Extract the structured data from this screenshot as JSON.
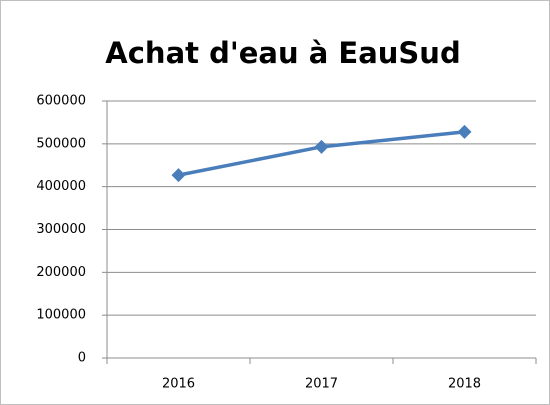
{
  "chart_data": {
    "type": "line",
    "title": "Achat d'eau à EauSud",
    "categories": [
      "2016",
      "2017",
      "2018"
    ],
    "values": [
      427000,
      493000,
      528000
    ],
    "color": "#4a7ebb",
    "ylim": [
      0,
      600000
    ],
    "yticks": [
      0,
      100000,
      200000,
      300000,
      400000,
      500000,
      600000
    ],
    "grid": true
  }
}
